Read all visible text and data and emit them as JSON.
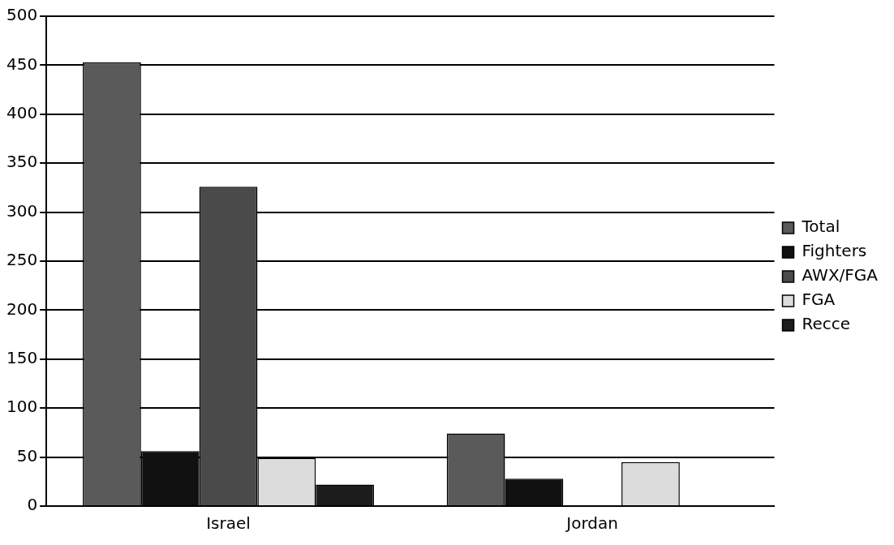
{
  "chart_data": {
    "type": "bar",
    "categories": [
      "Israel",
      "Jordan"
    ],
    "series": [
      {
        "name": "Total",
        "color": "#5a5a5a",
        "values": [
          453,
          74
        ]
      },
      {
        "name": "Fighters",
        "color": "#111111",
        "values": [
          56,
          28
        ]
      },
      {
        "name": "AWX/FGA",
        "color": "#4a4a4a",
        "values": [
          326,
          null
        ]
      },
      {
        "name": "FGA",
        "color": "#dcdcdc",
        "values": [
          49,
          45
        ]
      },
      {
        "name": "Recce",
        "color": "#1c1c1c",
        "values": [
          22,
          null
        ]
      }
    ],
    "ylim": [
      0,
      500
    ],
    "yticks": [
      0,
      50,
      100,
      150,
      200,
      250,
      300,
      350,
      400,
      450,
      500
    ],
    "grid": "y",
    "legend": "right"
  }
}
